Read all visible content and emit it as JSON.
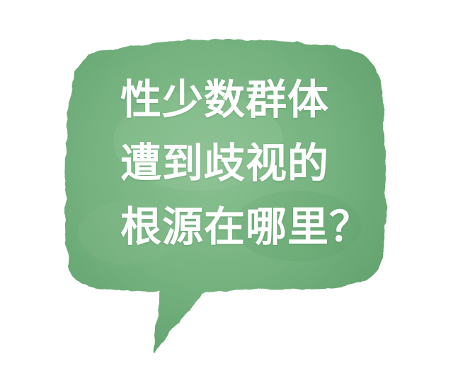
{
  "bubble": {
    "lines": [
      "性少数群体",
      "遭到歧视的",
      "根源在哪里？"
    ],
    "fill_color": "#72b07c",
    "fill_color_light": "#8cc293",
    "fill_color_dark": "#5a9a66",
    "text_color": "#ffffff"
  }
}
